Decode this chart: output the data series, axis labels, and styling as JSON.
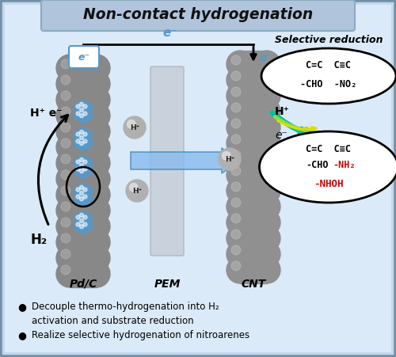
{
  "title": "Non-contact hydrogenation",
  "bg_color": "#c5d8ea",
  "inner_bg_top": "#e8f2fb",
  "inner_bg_bottom": "#b8d0e5",
  "title_bg": "#aec0d8",
  "text_black": "#111111",
  "text_red": "#cc0000",
  "electron_blue": "#5599cc",
  "cnt_color": "#888888",
  "cnt_hi": "#aaaaaa",
  "pem_color": "#c0c8d0",
  "hplus_color": "#aaaaaa",
  "arrow_blue": "#5599dd",
  "wire_color": "#111111",
  "teal_arrow": "#00bfa0",
  "green_arrow": "#88dd44",
  "yellow_arrow": "#dddd00",
  "label_pdc": "Pd/C",
  "label_pem": "PEM",
  "label_cnt": "CNT",
  "selective_reduction": "Selective reduction",
  "box1_line1": "C=C  C≡C",
  "box1_line2": "-CHO  -NO₂",
  "box2_line1": "C=C  C≡C",
  "box2_cho": "-CHO",
  "box2_nh2": "-NH₂",
  "box2_nhoh": "-NHOH",
  "bullet1a": "Decouple thermo-hydrogenation into H",
  "bullet1b": "activation and substrate reduction",
  "bullet2": "Realize selective hydrogenation of nitroarenes"
}
